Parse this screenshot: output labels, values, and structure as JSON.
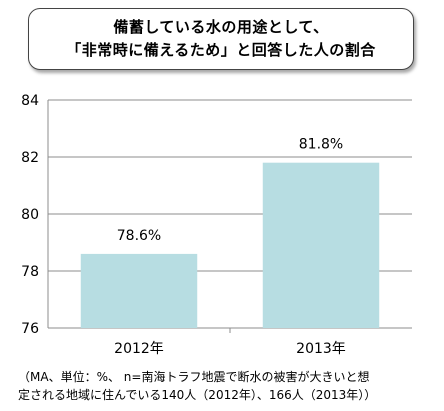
{
  "title": {
    "line1": "備蓄している水の用途として、",
    "line2": "「非常時に備えるため」と回答した人の割合"
  },
  "chart_data": {
    "type": "bar",
    "categories": [
      "2012年",
      "2013年"
    ],
    "values": [
      78.6,
      81.8
    ],
    "data_labels": [
      "78.6%",
      "81.8%"
    ],
    "ylim": [
      76,
      84
    ],
    "yticks": [
      "76",
      "78",
      "80",
      "82",
      "84"
    ],
    "grid": true,
    "bar_color": "#b7dde2",
    "xlabel": "",
    "ylabel": ""
  },
  "note": {
    "line1": "（MA、単位：%、 n=南海トラフ地震で断水の被害が大きいと想",
    "line2": "定される地域に住んでいる140人（2012年）、166人（2013年））"
  }
}
